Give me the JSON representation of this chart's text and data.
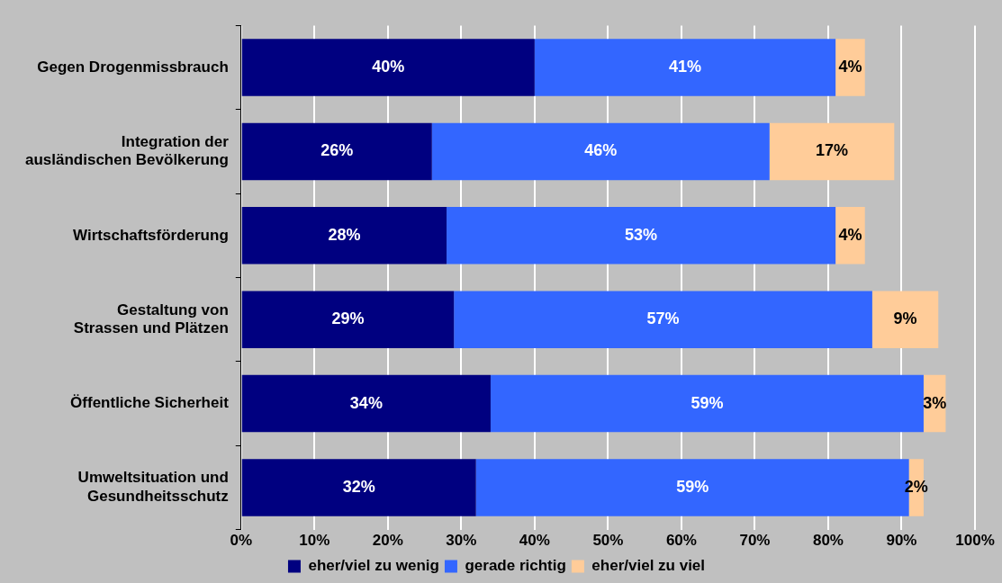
{
  "chart_data": {
    "type": "bar",
    "orientation": "horizontal",
    "stacked": true,
    "categories": [
      "Gegen Drogenmissbrauch",
      "Integration der\nausländischen Bevölkerung",
      "Wirtschaftsförderung",
      "Gestaltung von\nStrassen und Plätzen",
      "Öffentliche Sicherheit",
      "Umweltsituation und\nGesundheitsschutz"
    ],
    "series": [
      {
        "name": "eher/viel zu wenig",
        "color": "#000080",
        "values": [
          40,
          26,
          28,
          29,
          34,
          32
        ],
        "value_labels": [
          "40%",
          "26%",
          "28%",
          "29%",
          "34%",
          "32%"
        ]
      },
      {
        "name": "gerade richtig",
        "color": "#3366ff",
        "values": [
          41,
          46,
          53,
          57,
          59,
          59
        ],
        "value_labels": [
          "41%",
          "46%",
          "53%",
          "57%",
          "59%",
          "59%"
        ]
      },
      {
        "name": "eher/viel zu viel",
        "color": "#ffcc99",
        "values": [
          4,
          17,
          4,
          9,
          3,
          2
        ],
        "value_labels": [
          "4%",
          "17%",
          "4%",
          "9%",
          "3%",
          "2%"
        ]
      }
    ],
    "xlim": [
      0,
      100
    ],
    "xticks": [
      {
        "value": 0,
        "label": "0%"
      },
      {
        "value": 10,
        "label": "10%"
      },
      {
        "value": 20,
        "label": "20%"
      },
      {
        "value": 30,
        "label": "30%"
      },
      {
        "value": 40,
        "label": "40%"
      },
      {
        "value": 50,
        "label": "50%"
      },
      {
        "value": 60,
        "label": "60%"
      },
      {
        "value": 70,
        "label": "70%"
      },
      {
        "value": 80,
        "label": "80%"
      },
      {
        "value": 90,
        "label": "90%"
      },
      {
        "value": 100,
        "label": "100%"
      }
    ],
    "grid": "x",
    "legend": "bottom"
  }
}
